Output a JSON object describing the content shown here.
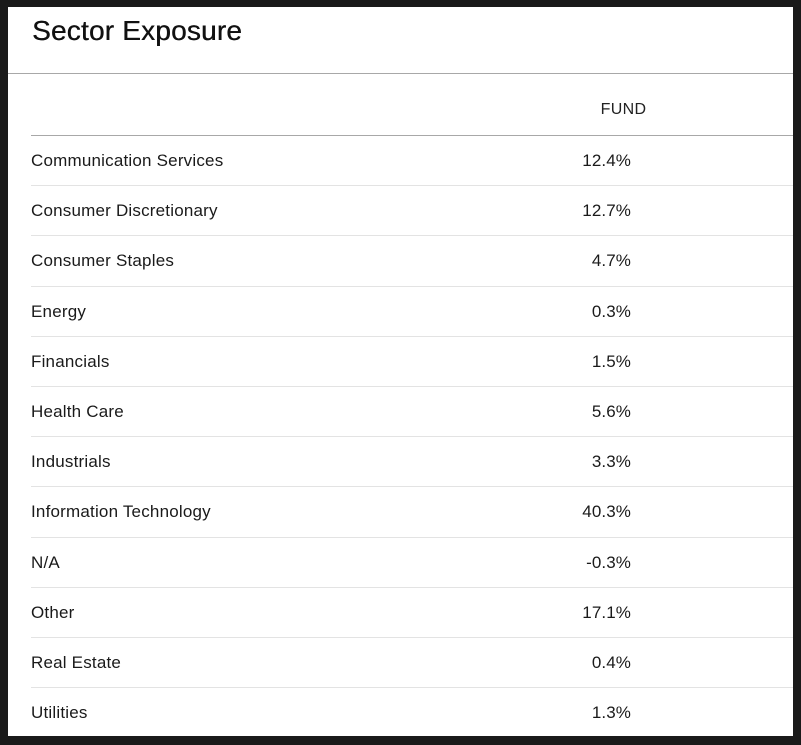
{
  "header": {
    "title": "Sector Exposure"
  },
  "table": {
    "columns": {
      "sector": "",
      "fund": "FUND"
    },
    "rows": [
      {
        "sector": "Communication Services",
        "fund": "12.4%"
      },
      {
        "sector": "Consumer Discretionary",
        "fund": "12.7%"
      },
      {
        "sector": "Consumer Staples",
        "fund": "4.7%"
      },
      {
        "sector": "Energy",
        "fund": "0.3%"
      },
      {
        "sector": "Financials",
        "fund": "1.5%"
      },
      {
        "sector": "Health Care",
        "fund": "5.6%"
      },
      {
        "sector": "Industrials",
        "fund": "3.3%"
      },
      {
        "sector": "Information Technology",
        "fund": "40.3%"
      },
      {
        "sector": "N/A",
        "fund": "-0.3%"
      },
      {
        "sector": "Other",
        "fund": "17.1%"
      },
      {
        "sector": "Real Estate",
        "fund": "0.4%"
      },
      {
        "sector": "Utilities",
        "fund": "1.3%"
      }
    ]
  }
}
